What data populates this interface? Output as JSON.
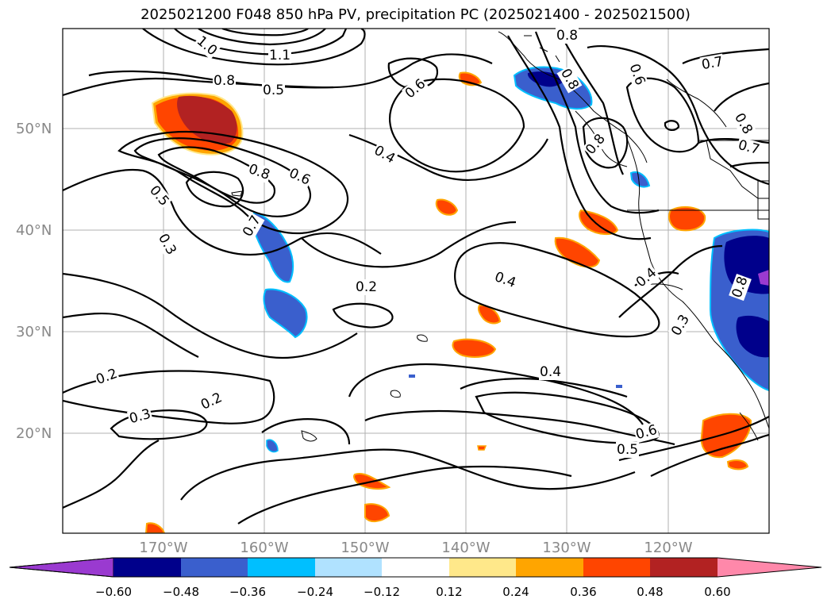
{
  "title": "2025021200 F048 850 hPa PV, precipitation PC (2025021400 - 2025021500)",
  "lat_labels": [
    "50°N",
    "40°N",
    "30°N",
    "20°N"
  ],
  "lon_labels": [
    "170°W",
    "160°W",
    "150°W",
    "140°W",
    "130°W",
    "120°W"
  ],
  "contour_labels": [
    "1.0",
    "1.1",
    "0.8",
    "0.5",
    "0.6",
    "0.4",
    "0.8",
    "0.6",
    "0.5",
    "0.3",
    "0.7",
    "0.2",
    "0.4",
    "0.2",
    "0.3",
    "0.2",
    "0.4",
    "0.6",
    "0.5",
    "0.8",
    "0.7",
    "0.8",
    "0.7",
    "0.6",
    "0.8",
    "0.4",
    "0.3",
    "0.8",
    "0.8"
  ],
  "colorbar": {
    "ticks": [
      "−0.60",
      "−0.48",
      "−0.36",
      "−0.24",
      "−0.12",
      "0.12",
      "0.24",
      "0.36",
      "0.48",
      "0.60"
    ],
    "colors": [
      "#9a3ad0",
      "#00008b",
      "#3a5fcd",
      "#00bfff",
      "#b0e2ff",
      "#ffffff",
      "#ffe88a",
      "#ffa500",
      "#ff4500",
      "#b22222",
      "#ff88aa"
    ]
  }
}
